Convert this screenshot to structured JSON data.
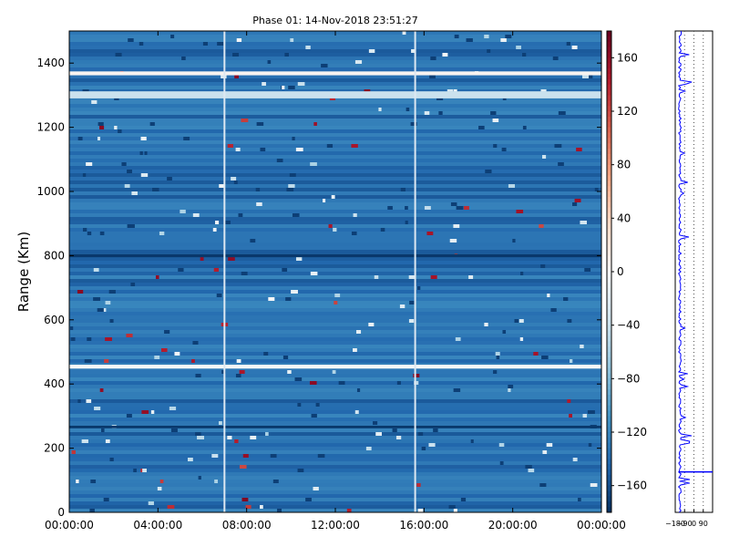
{
  "chart_data": {
    "type": "heatmap",
    "title": "Phase 01: 14-Nov-2018 23:51:27",
    "ylabel": "Range (Km)",
    "xlabel": "",
    "x_ticks": [
      "00:00:00",
      "04:00:00",
      "08:00:00",
      "12:00:00",
      "16:00:00",
      "20:00:00",
      "00:00:00"
    ],
    "x_range_hours": [
      0,
      24
    ],
    "y_ticks": [
      0,
      200,
      400,
      600,
      800,
      1000,
      1200,
      1400
    ],
    "ylim": [
      0,
      1500
    ],
    "grid": false,
    "colorbar": {
      "range": [
        -180,
        180
      ],
      "ticks": [
        160,
        120,
        80,
        40,
        0,
        -40,
        -80,
        -120,
        -160
      ],
      "colormap": "RdBu_r",
      "colors": [
        "#053061",
        "#2166ac",
        "#4393c3",
        "#92c5de",
        "#d1e5f0",
        "#f7f7f7",
        "#fddbc7",
        "#f4a582",
        "#d6604d",
        "#b2182b",
        "#67001f"
      ]
    },
    "background_phase": -135,
    "white_bands_km": [
      {
        "range": [
          1362,
          1374
        ],
        "value": 5
      },
      {
        "range": [
          1290,
          1312
        ],
        "value": -40
      },
      {
        "range": [
          448,
          460
        ],
        "value": 0
      },
      {
        "range": [
          795,
          805
        ],
        "value": -175
      },
      {
        "range": [
          262,
          270
        ],
        "value": -175
      }
    ],
    "vertical_lines_hours": [
      7.0,
      15.6
    ],
    "side_panel": {
      "ticks": [
        "-180",
        "-90",
        "0",
        "90"
      ],
      "range": [
        -180,
        180
      ],
      "line_color": "#0000ff"
    }
  }
}
